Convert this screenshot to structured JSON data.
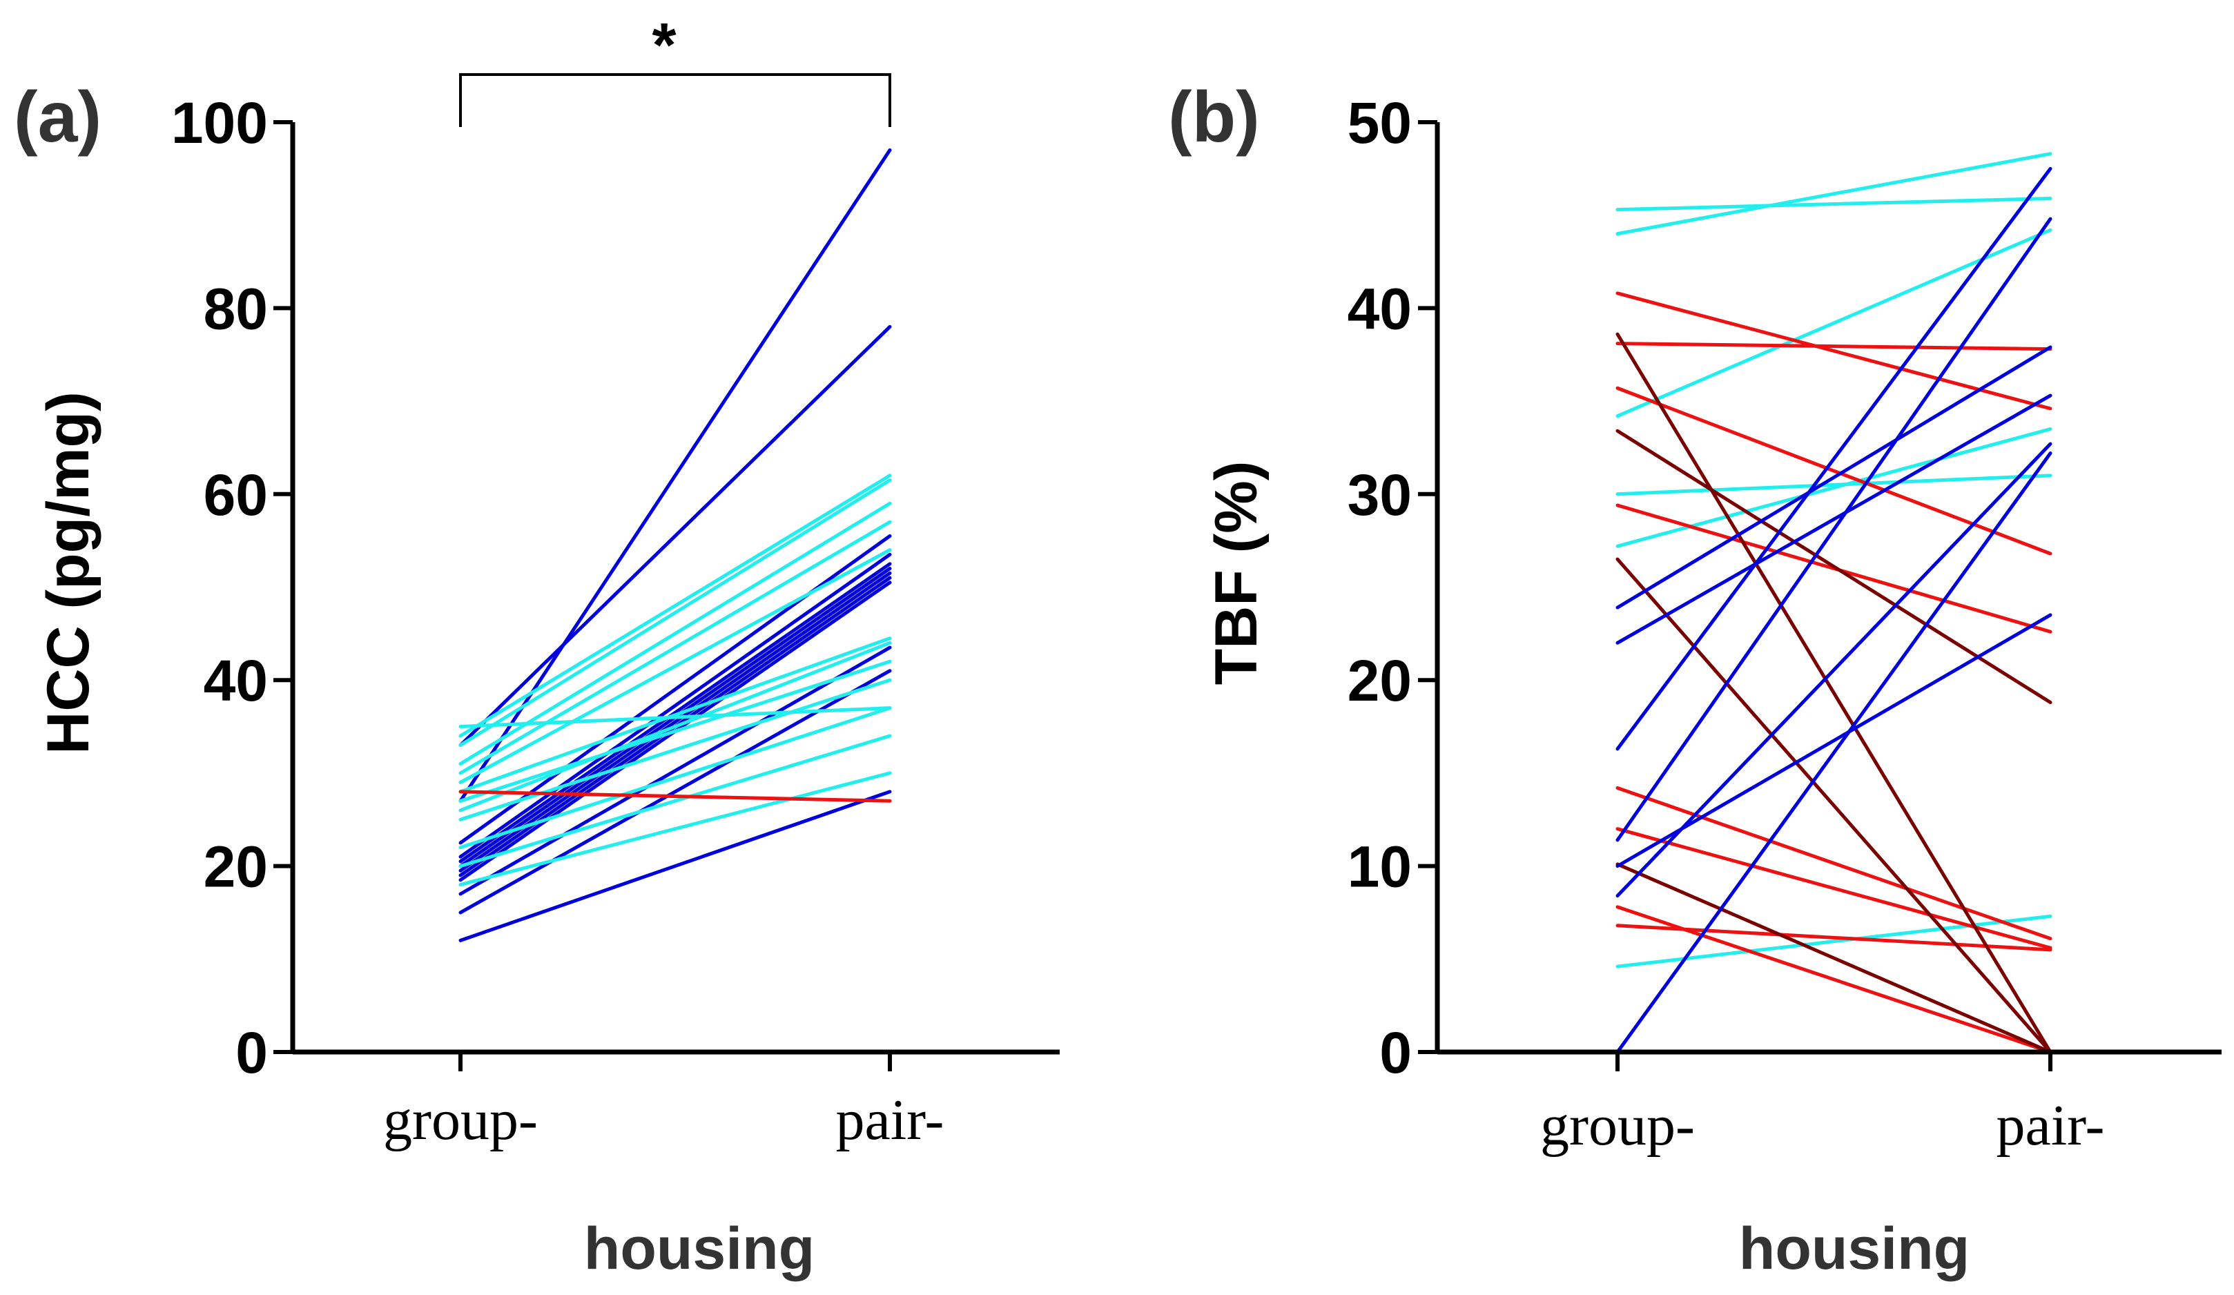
{
  "chart_data": [
    {
      "type": "line",
      "panel_label": "(a)",
      "xlabel": "housing",
      "ylabel": "HCC (pg/mg)",
      "categories": [
        "group-",
        "pair-"
      ],
      "ylim": [
        0,
        100
      ],
      "yticks": [
        0,
        20,
        40,
        60,
        80,
        100
      ],
      "significance": {
        "symbol": "*",
        "between": [
          "group-",
          "pair-"
        ]
      },
      "series": [
        {
          "color": "#0000dd",
          "values": [
            12,
            28
          ]
        },
        {
          "color": "#0000dd",
          "values": [
            15,
            41
          ]
        },
        {
          "color": "#0000dd",
          "values": [
            17,
            43.5
          ]
        },
        {
          "color": "#0000dd",
          "values": [
            18.5,
            50.5
          ]
        },
        {
          "color": "#0000dd",
          "values": [
            19,
            51
          ]
        },
        {
          "color": "#0000dd",
          "values": [
            19.5,
            51.5
          ]
        },
        {
          "color": "#0000dd",
          "values": [
            20,
            52
          ]
        },
        {
          "color": "#0000dd",
          "values": [
            20.5,
            52.5
          ]
        },
        {
          "color": "#0000dd",
          "values": [
            21,
            53.5
          ]
        },
        {
          "color": "#0000dd",
          "values": [
            22.5,
            55.5
          ]
        },
        {
          "color": "#0000dd",
          "values": [
            27,
            97
          ]
        },
        {
          "color": "#0000dd",
          "values": [
            33,
            78
          ]
        },
        {
          "color": "#22eeee",
          "values": [
            18,
            30
          ]
        },
        {
          "color": "#22eeee",
          "values": [
            20,
            34
          ]
        },
        {
          "color": "#22eeee",
          "values": [
            22,
            37
          ]
        },
        {
          "color": "#22eeee",
          "values": [
            25,
            40
          ]
        },
        {
          "color": "#22eeee",
          "values": [
            26,
            44
          ]
        },
        {
          "color": "#22eeee",
          "values": [
            27,
            42
          ]
        },
        {
          "color": "#22eeee",
          "values": [
            28,
            44.5
          ]
        },
        {
          "color": "#22eeee",
          "values": [
            29,
            54
          ]
        },
        {
          "color": "#22eeee",
          "values": [
            30,
            57
          ]
        },
        {
          "color": "#22eeee",
          "values": [
            31,
            59
          ]
        },
        {
          "color": "#22eeee",
          "values": [
            33,
            61.5
          ]
        },
        {
          "color": "#22eeee",
          "values": [
            34,
            62
          ]
        },
        {
          "color": "#22eeee",
          "values": [
            35,
            37
          ]
        },
        {
          "color": "#ee1111",
          "values": [
            28,
            27
          ]
        }
      ]
    },
    {
      "type": "line",
      "panel_label": "(b)",
      "xlabel": "housing",
      "ylabel": "TBF (%)",
      "categories": [
        "group-",
        "pair-"
      ],
      "ylim": [
        0,
        50
      ],
      "yticks": [
        0,
        10,
        20,
        30,
        40,
        50
      ],
      "series": [
        {
          "color": "#22eeee",
          "values": [
            45.3,
            45.9
          ]
        },
        {
          "color": "#22eeee",
          "values": [
            44,
            48.3
          ]
        },
        {
          "color": "#22eeee",
          "values": [
            34.2,
            44.2
          ]
        },
        {
          "color": "#22eeee",
          "values": [
            30,
            31
          ]
        },
        {
          "color": "#22eeee",
          "values": [
            27.2,
            33.5
          ]
        },
        {
          "color": "#22eeee",
          "values": [
            4.6,
            7.3
          ]
        },
        {
          "color": "#ee1111",
          "values": [
            40.8,
            34.6
          ]
        },
        {
          "color": "#ee1111",
          "values": [
            38.1,
            37.8
          ]
        },
        {
          "color": "#ee1111",
          "values": [
            35.7,
            26.8
          ]
        },
        {
          "color": "#ee1111",
          "values": [
            29.4,
            22.6
          ]
        },
        {
          "color": "#ee1111",
          "values": [
            14.2,
            6.1
          ]
        },
        {
          "color": "#ee1111",
          "values": [
            12,
            5.6
          ]
        },
        {
          "color": "#ee1111",
          "values": [
            7.8,
            0
          ]
        },
        {
          "color": "#ee1111",
          "values": [
            6.8,
            5.5
          ]
        },
        {
          "color": "#7a0000",
          "values": [
            38.6,
            0
          ]
        },
        {
          "color": "#7a0000",
          "values": [
            33.4,
            18.8
          ]
        },
        {
          "color": "#7a0000",
          "values": [
            26.5,
            0
          ]
        },
        {
          "color": "#7a0000",
          "values": [
            10.1,
            0
          ]
        },
        {
          "color": "#0000dd",
          "values": [
            23.9,
            37.9
          ]
        },
        {
          "color": "#0000dd",
          "values": [
            22,
            35.3
          ]
        },
        {
          "color": "#0000dd",
          "values": [
            16.3,
            47.5
          ]
        },
        {
          "color": "#0000dd",
          "values": [
            11.4,
            44.8
          ]
        },
        {
          "color": "#0000dd",
          "values": [
            10,
            23.5
          ]
        },
        {
          "color": "#0000dd",
          "values": [
            8.4,
            32.7
          ]
        },
        {
          "color": "#0000dd",
          "values": [
            0,
            32.2
          ]
        }
      ]
    }
  ]
}
